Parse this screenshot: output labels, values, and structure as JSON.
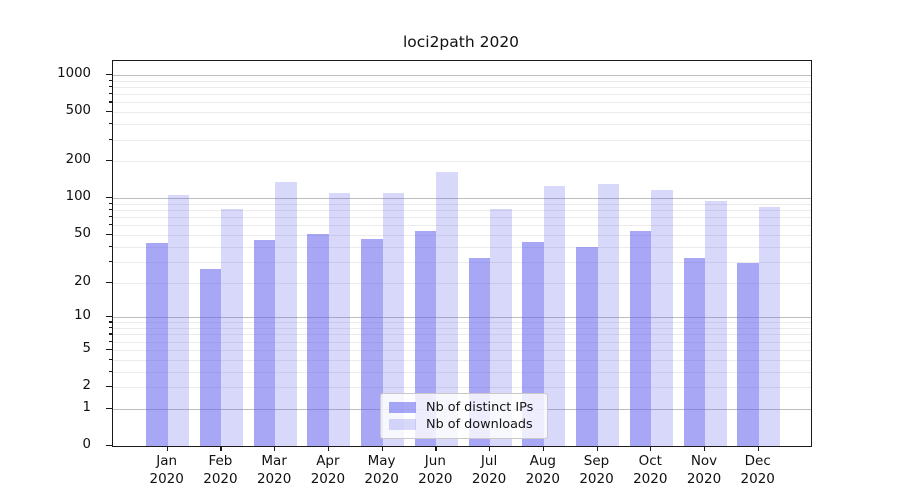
{
  "colors": {
    "bar_dark": "rgba(100,100,240,0.57)",
    "bar_light": "rgba(100,100,240,0.25)",
    "grid_minor": "#ebebeb",
    "grid_major": "#bdbdbd",
    "axis": "#1a1a1a"
  },
  "chart_data": {
    "type": "bar",
    "title": "loci2path 2020",
    "categories": [
      "Jan 2020",
      "Feb 2020",
      "Mar 2020",
      "Apr 2020",
      "May 2020",
      "Jun 2020",
      "Jul 2020",
      "Aug 2020",
      "Sep 2020",
      "Oct 2020",
      "Nov 2020",
      "Dec 2020"
    ],
    "series": [
      {
        "name": "Nb of distinct IPs",
        "values": [
          43,
          26,
          45,
          51,
          46,
          54,
          32,
          44,
          40,
          54,
          32,
          29
        ]
      },
      {
        "name": "Nb of downloads",
        "values": [
          107,
          81,
          135,
          110,
          110,
          163,
          81,
          125,
          130,
          117,
          95,
          85
        ]
      }
    ],
    "xlabel": "",
    "ylabel": "",
    "scale": "log10(value+1)",
    "ylim": [
      0,
      1300
    ],
    "y_tick_values": [
      0,
      1,
      2,
      5,
      10,
      20,
      50,
      100,
      200,
      500,
      1000
    ],
    "minor_gridline_values": [
      2,
      3,
      4,
      5,
      6,
      7,
      8,
      9,
      20,
      30,
      40,
      50,
      60,
      70,
      80,
      90,
      200,
      300,
      400,
      500,
      600,
      700,
      800,
      900
    ],
    "major_gridline_values": [
      1,
      10,
      100,
      1000
    ],
    "grid": true,
    "legend_position": "lower center"
  }
}
